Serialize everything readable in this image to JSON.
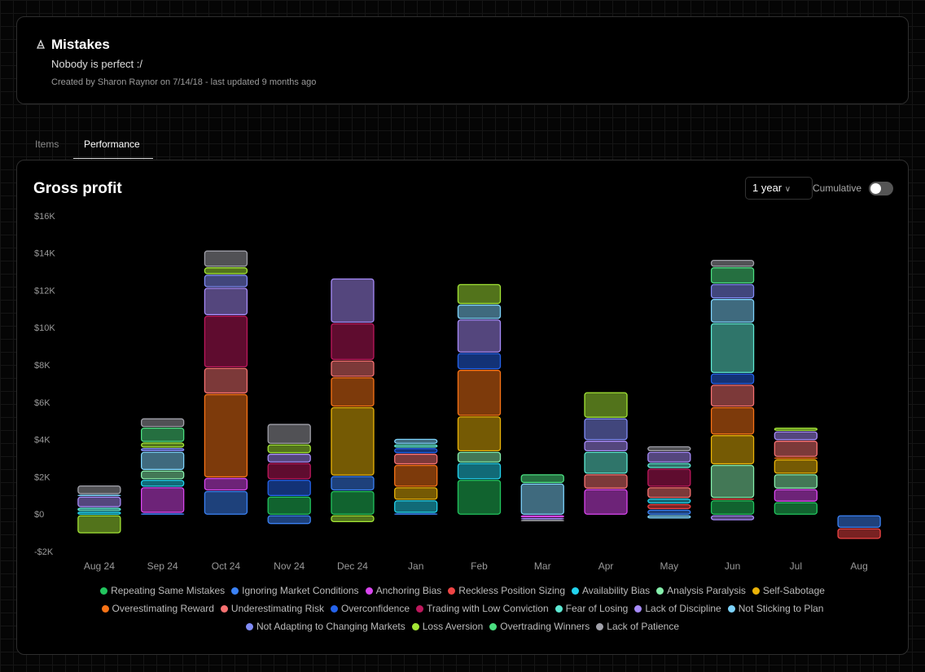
{
  "header": {
    "title": "Mistakes",
    "subtitle": "Nobody is perfect :/",
    "meta": "Created by Sharon Raynor on 7/14/18 - last updated 9 months ago"
  },
  "tabs": [
    "Items",
    "Performance"
  ],
  "controls": {
    "range": "1 year",
    "cumulative": "Cumulative",
    "cumulative_on": false
  },
  "chart_data": {
    "type": "bar",
    "stacked": true,
    "title": "Gross profit",
    "categories": [
      "Aug 24",
      "Sep 24",
      "Oct 24",
      "Nov 24",
      "Dec 24",
      "Jan",
      "Feb",
      "Mar",
      "Apr",
      "May",
      "Jun",
      "Jul",
      "Aug"
    ],
    "ylim": [
      -2000,
      16000
    ],
    "yticks": [
      {
        "value": 16000,
        "label": "$16K"
      },
      {
        "value": 14000,
        "label": "$14K"
      },
      {
        "value": 12000,
        "label": "$12K"
      },
      {
        "value": 10000,
        "label": "$10K"
      },
      {
        "value": 8000,
        "label": "$8K"
      },
      {
        "value": 6000,
        "label": "$6K"
      },
      {
        "value": 4000,
        "label": "$4K"
      },
      {
        "value": 2000,
        "label": "$2K"
      },
      {
        "value": 0,
        "label": "$0"
      },
      {
        "value": -2000,
        "label": "-$2K"
      }
    ],
    "grid": false,
    "series": [
      {
        "name": "Repeating Same Mistakes",
        "color": "#22c55e",
        "values": [
          0,
          0,
          0,
          1000,
          1300,
          0,
          1900,
          0,
          0,
          0,
          800,
          700,
          0
        ]
      },
      {
        "name": "Ignoring Market Conditions",
        "color": "#3b82f6",
        "values": [
          0,
          100,
          1300,
          -500,
          800,
          100,
          0,
          0,
          0,
          300,
          0,
          0,
          -700
        ]
      },
      {
        "name": "Anchoring Bias",
        "color": "#d946ef",
        "values": [
          0,
          1400,
          700,
          0,
          0,
          0,
          0,
          -150,
          1400,
          0,
          0,
          700,
          0
        ]
      },
      {
        "name": "Reckless Position Sizing",
        "color": "#ef4444",
        "values": [
          0,
          0,
          0,
          0,
          0,
          0,
          0,
          0,
          0,
          300,
          100,
          0,
          -600
        ]
      },
      {
        "name": "Availability Bias",
        "color": "#22d3ee",
        "values": [
          200,
          400,
          0,
          0,
          0,
          700,
          900,
          0,
          0,
          300,
          0,
          0,
          0
        ]
      },
      {
        "name": "Analysis Paralysis",
        "color": "#86efac",
        "values": [
          0,
          500,
          0,
          0,
          0,
          0,
          600,
          0,
          0,
          0,
          1800,
          800,
          0
        ]
      },
      {
        "name": "Self-Sabotage",
        "color": "#eab308",
        "values": [
          0,
          0,
          0,
          0,
          3700,
          700,
          1900,
          0,
          0,
          0,
          1600,
          800,
          0
        ]
      },
      {
        "name": "Overestimating Reward",
        "color": "#f97316",
        "values": [
          0,
          0,
          4500,
          0,
          1600,
          1200,
          2500,
          0,
          0,
          0,
          1500,
          100,
          0
        ]
      },
      {
        "name": "Underestimating Risk",
        "color": "#f87171",
        "values": [
          0,
          0,
          1400,
          0,
          900,
          600,
          0,
          0,
          800,
          600,
          1200,
          900,
          0
        ]
      },
      {
        "name": "Overconfidence",
        "color": "#2563eb",
        "values": [
          0,
          0,
          0,
          900,
          0,
          300,
          900,
          0,
          0,
          0,
          600,
          0,
          0
        ]
      },
      {
        "name": "Trading with Low Conviction",
        "color": "#be185d",
        "values": [
          0,
          0,
          2800,
          900,
          2000,
          0,
          0,
          0,
          0,
          1000,
          0,
          0,
          0
        ]
      },
      {
        "name": "Fear of Losing",
        "color": "#5eead4",
        "values": [
          200,
          0,
          0,
          0,
          0,
          200,
          0,
          0,
          1200,
          300,
          2700,
          0,
          0
        ]
      },
      {
        "name": "Lack of Discipline",
        "color": "#a78bfa",
        "values": [
          600,
          0,
          1500,
          500,
          2400,
          0,
          1800,
          -100,
          600,
          600,
          -300,
          500,
          0
        ]
      },
      {
        "name": "Not Sticking to Plan",
        "color": "#7dd3fc",
        "values": [
          100,
          1000,
          0,
          0,
          0,
          300,
          800,
          1700,
          0,
          -200,
          1300,
          0,
          0
        ]
      },
      {
        "name": "Not Adapting to Changing Markets",
        "color": "#818cf8",
        "values": [
          0,
          200,
          700,
          0,
          0,
          0,
          0,
          0,
          1200,
          0,
          800,
          0,
          0
        ]
      },
      {
        "name": "Loss Aversion",
        "color": "#a3e635",
        "values": [
          -1000,
          300,
          400,
          500,
          -400,
          0,
          1100,
          0,
          1400,
          0,
          0,
          200,
          0
        ]
      },
      {
        "name": "Overtrading Winners",
        "color": "#4ade80",
        "values": [
          0,
          800,
          0,
          0,
          0,
          0,
          0,
          500,
          0,
          0,
          900,
          0,
          0
        ]
      },
      {
        "name": "Lack of Patience",
        "color": "#a1a1aa",
        "values": [
          500,
          500,
          900,
          1100,
          0,
          0,
          0,
          -100,
          0,
          300,
          400,
          0,
          0
        ]
      }
    ]
  }
}
